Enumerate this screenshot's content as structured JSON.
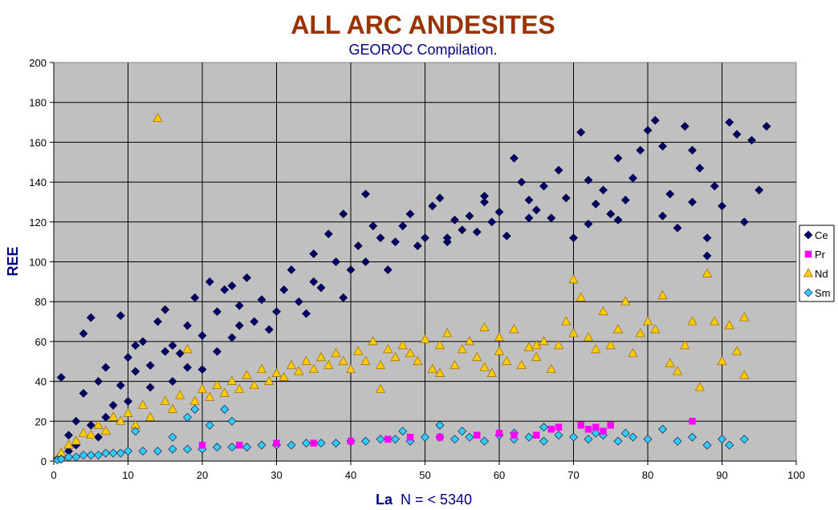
{
  "chart_data": {
    "type": "scatter",
    "title": "ALL ARC ANDESITES",
    "subtitle": "GEOROC Compilation.",
    "xlabel_main": "La",
    "xlabel_suffix": "N = < 5340",
    "ylabel": "REE",
    "xlim": [
      0,
      100
    ],
    "ylim": [
      0,
      200
    ],
    "x_ticks": [
      0,
      10,
      20,
      30,
      40,
      50,
      60,
      70,
      80,
      90,
      100
    ],
    "y_ticks": [
      0,
      20,
      40,
      60,
      80,
      100,
      120,
      140,
      160,
      180,
      200
    ],
    "grid": true,
    "plot_background": "#c0c0c0",
    "legend_position": "right",
    "series": [
      {
        "name": "Ce",
        "marker": "diamond",
        "color": "#000066",
        "points": [
          [
            0.5,
            1
          ],
          [
            1,
            3
          ],
          [
            1,
            42
          ],
          [
            2,
            5
          ],
          [
            2,
            13
          ],
          [
            3,
            8
          ],
          [
            3,
            20
          ],
          [
            4,
            34
          ],
          [
            4,
            64
          ],
          [
            5,
            18
          ],
          [
            5,
            72
          ],
          [
            6,
            40
          ],
          [
            6,
            12
          ],
          [
            7,
            22
          ],
          [
            7,
            47
          ],
          [
            8,
            28
          ],
          [
            9,
            73
          ],
          [
            9,
            38
          ],
          [
            10,
            30
          ],
          [
            10,
            52
          ],
          [
            11,
            45
          ],
          [
            11,
            58
          ],
          [
            12,
            60
          ],
          [
            13,
            37
          ],
          [
            13,
            48
          ],
          [
            14,
            70
          ],
          [
            15,
            76
          ],
          [
            15,
            55
          ],
          [
            16,
            40
          ],
          [
            17,
            54
          ],
          [
            18,
            47
          ],
          [
            18,
            68
          ],
          [
            19,
            82
          ],
          [
            20,
            46
          ],
          [
            20,
            63
          ],
          [
            21,
            90
          ],
          [
            22,
            55
          ],
          [
            22,
            75
          ],
          [
            23,
            86
          ],
          [
            24,
            62
          ],
          [
            25,
            68
          ],
          [
            25,
            78
          ],
          [
            26,
            92
          ],
          [
            27,
            70
          ],
          [
            28,
            81
          ],
          [
            29,
            66
          ],
          [
            30,
            75
          ],
          [
            31,
            86
          ],
          [
            32,
            96
          ],
          [
            33,
            80
          ],
          [
            34,
            74
          ],
          [
            35,
            104
          ],
          [
            35,
            90
          ],
          [
            36,
            87
          ],
          [
            37,
            114
          ],
          [
            38,
            100
          ],
          [
            39,
            82
          ],
          [
            40,
            96
          ],
          [
            41,
            108
          ],
          [
            42,
            100
          ],
          [
            43,
            118
          ],
          [
            44,
            112
          ],
          [
            45,
            96
          ],
          [
            46,
            110
          ],
          [
            47,
            118
          ],
          [
            48,
            124
          ],
          [
            49,
            108
          ],
          [
            50,
            112
          ],
          [
            51,
            128
          ],
          [
            52,
            132
          ],
          [
            53,
            110
          ],
          [
            54,
            121
          ],
          [
            55,
            116
          ],
          [
            56,
            123
          ],
          [
            57,
            115
          ],
          [
            58,
            130
          ],
          [
            59,
            120
          ],
          [
            60,
            125
          ],
          [
            61,
            113
          ],
          [
            62,
            152
          ],
          [
            63,
            140
          ],
          [
            64,
            131
          ],
          [
            65,
            126
          ],
          [
            66,
            138
          ],
          [
            67,
            122
          ],
          [
            68,
            146
          ],
          [
            69,
            132
          ],
          [
            70,
            112
          ],
          [
            71,
            165
          ],
          [
            72,
            141
          ],
          [
            73,
            129
          ],
          [
            74,
            136
          ],
          [
            75,
            124
          ],
          [
            76,
            152
          ],
          [
            77,
            131
          ],
          [
            78,
            142
          ],
          [
            79,
            156
          ],
          [
            80,
            166
          ],
          [
            81,
            171
          ],
          [
            82,
            158
          ],
          [
            83,
            134
          ],
          [
            84,
            117
          ],
          [
            85,
            168
          ],
          [
            86,
            156
          ],
          [
            87,
            147
          ],
          [
            88,
            103
          ],
          [
            89,
            138
          ],
          [
            90,
            128
          ],
          [
            91,
            170
          ],
          [
            92,
            164
          ],
          [
            93,
            120
          ],
          [
            94,
            161
          ],
          [
            95,
            136
          ],
          [
            96,
            168
          ],
          [
            42,
            134
          ],
          [
            53,
            112
          ],
          [
            58,
            133
          ],
          [
            64,
            122
          ],
          [
            72,
            119
          ],
          [
            76,
            121
          ],
          [
            82,
            123
          ],
          [
            86,
            130
          ],
          [
            88,
            112
          ],
          [
            16,
            58
          ],
          [
            24,
            88
          ],
          [
            39,
            124
          ]
        ]
      },
      {
        "name": "Pr",
        "marker": "square",
        "color": "#ff00ff",
        "points": [
          [
            20,
            8
          ],
          [
            25,
            8
          ],
          [
            30,
            9
          ],
          [
            35,
            9
          ],
          [
            40,
            10
          ],
          [
            45,
            11
          ],
          [
            48,
            12
          ],
          [
            52,
            12
          ],
          [
            57,
            13
          ],
          [
            60,
            14
          ],
          [
            62,
            13
          ],
          [
            65,
            13
          ],
          [
            67,
            16
          ],
          [
            68,
            17
          ],
          [
            71,
            18
          ],
          [
            72,
            16
          ],
          [
            73,
            17
          ],
          [
            74,
            15
          ],
          [
            75,
            18
          ],
          [
            86,
            20
          ]
        ]
      },
      {
        "name": "Nd",
        "marker": "triangle",
        "color": "#ffcc00",
        "points": [
          [
            0.5,
            1
          ],
          [
            1,
            4
          ],
          [
            2,
            8
          ],
          [
            3,
            10
          ],
          [
            4,
            14
          ],
          [
            5,
            13
          ],
          [
            6,
            18
          ],
          [
            7,
            15
          ],
          [
            8,
            22
          ],
          [
            9,
            20
          ],
          [
            10,
            24
          ],
          [
            11,
            18
          ],
          [
            12,
            28
          ],
          [
            13,
            22
          ],
          [
            14,
            172
          ],
          [
            15,
            30
          ],
          [
            16,
            26
          ],
          [
            17,
            33
          ],
          [
            18,
            56
          ],
          [
            19,
            30
          ],
          [
            20,
            36
          ],
          [
            21,
            32
          ],
          [
            22,
            38
          ],
          [
            23,
            34
          ],
          [
            24,
            40
          ],
          [
            25,
            36
          ],
          [
            26,
            43
          ],
          [
            27,
            38
          ],
          [
            28,
            46
          ],
          [
            29,
            40
          ],
          [
            30,
            44
          ],
          [
            31,
            42
          ],
          [
            32,
            48
          ],
          [
            33,
            45
          ],
          [
            34,
            50
          ],
          [
            35,
            46
          ],
          [
            36,
            52
          ],
          [
            37,
            48
          ],
          [
            38,
            54
          ],
          [
            39,
            50
          ],
          [
            40,
            46
          ],
          [
            41,
            55
          ],
          [
            42,
            50
          ],
          [
            43,
            60
          ],
          [
            44,
            48
          ],
          [
            45,
            56
          ],
          [
            46,
            52
          ],
          [
            47,
            58
          ],
          [
            48,
            54
          ],
          [
            49,
            50
          ],
          [
            50,
            61
          ],
          [
            51,
            46
          ],
          [
            52,
            58
          ],
          [
            53,
            64
          ],
          [
            54,
            48
          ],
          [
            55,
            56
          ],
          [
            56,
            60
          ],
          [
            57,
            52
          ],
          [
            58,
            67
          ],
          [
            59,
            44
          ],
          [
            60,
            55
          ],
          [
            61,
            50
          ],
          [
            62,
            66
          ],
          [
            63,
            48
          ],
          [
            64,
            57
          ],
          [
            65,
            52
          ],
          [
            66,
            60
          ],
          [
            67,
            46
          ],
          [
            68,
            58
          ],
          [
            69,
            70
          ],
          [
            70,
            91
          ],
          [
            71,
            82
          ],
          [
            72,
            62
          ],
          [
            73,
            56
          ],
          [
            74,
            75
          ],
          [
            75,
            58
          ],
          [
            76,
            66
          ],
          [
            77,
            80
          ],
          [
            78,
            54
          ],
          [
            79,
            64
          ],
          [
            80,
            70
          ],
          [
            81,
            66
          ],
          [
            82,
            83
          ],
          [
            83,
            49
          ],
          [
            84,
            45
          ],
          [
            85,
            58
          ],
          [
            86,
            70
          ],
          [
            87,
            37
          ],
          [
            88,
            94
          ],
          [
            89,
            70
          ],
          [
            90,
            50
          ],
          [
            91,
            68
          ],
          [
            92,
            55
          ],
          [
            93,
            43
          ],
          [
            93,
            72
          ],
          [
            60,
            62
          ],
          [
            65,
            58
          ],
          [
            70,
            64
          ],
          [
            44,
            36
          ],
          [
            52,
            44
          ],
          [
            58,
            47
          ]
        ]
      },
      {
        "name": "Sm",
        "marker": "diamond",
        "color": "#33ccff",
        "points": [
          [
            0.5,
            0.5
          ],
          [
            1,
            1
          ],
          [
            2,
            2
          ],
          [
            3,
            2
          ],
          [
            4,
            3
          ],
          [
            5,
            3
          ],
          [
            6,
            3
          ],
          [
            7,
            4
          ],
          [
            8,
            4
          ],
          [
            9,
            4
          ],
          [
            10,
            5
          ],
          [
            11,
            15
          ],
          [
            12,
            5
          ],
          [
            14,
            5
          ],
          [
            16,
            6
          ],
          [
            18,
            6
          ],
          [
            20,
            6
          ],
          [
            22,
            7
          ],
          [
            23,
            26
          ],
          [
            24,
            7
          ],
          [
            26,
            7
          ],
          [
            28,
            8
          ],
          [
            30,
            8
          ],
          [
            32,
            8
          ],
          [
            34,
            9
          ],
          [
            36,
            9
          ],
          [
            38,
            9
          ],
          [
            40,
            10
          ],
          [
            42,
            10
          ],
          [
            44,
            11
          ],
          [
            46,
            11
          ],
          [
            48,
            10
          ],
          [
            50,
            12
          ],
          [
            52,
            12
          ],
          [
            54,
            11
          ],
          [
            56,
            12
          ],
          [
            58,
            10
          ],
          [
            60,
            13
          ],
          [
            62,
            11
          ],
          [
            64,
            12
          ],
          [
            66,
            10
          ],
          [
            68,
            13
          ],
          [
            70,
            12
          ],
          [
            72,
            11
          ],
          [
            74,
            13
          ],
          [
            76,
            10
          ],
          [
            78,
            12
          ],
          [
            80,
            11
          ],
          [
            82,
            16
          ],
          [
            84,
            10
          ],
          [
            86,
            12
          ],
          [
            88,
            8
          ],
          [
            90,
            11
          ],
          [
            91,
            8
          ],
          [
            93,
            11
          ],
          [
            16,
            12
          ],
          [
            18,
            22
          ],
          [
            19,
            26
          ],
          [
            21,
            18
          ],
          [
            24,
            20
          ],
          [
            47,
            15
          ],
          [
            52,
            18
          ],
          [
            55,
            15
          ],
          [
            62,
            14
          ],
          [
            66,
            17
          ],
          [
            73,
            14
          ],
          [
            77,
            14
          ]
        ]
      }
    ]
  }
}
